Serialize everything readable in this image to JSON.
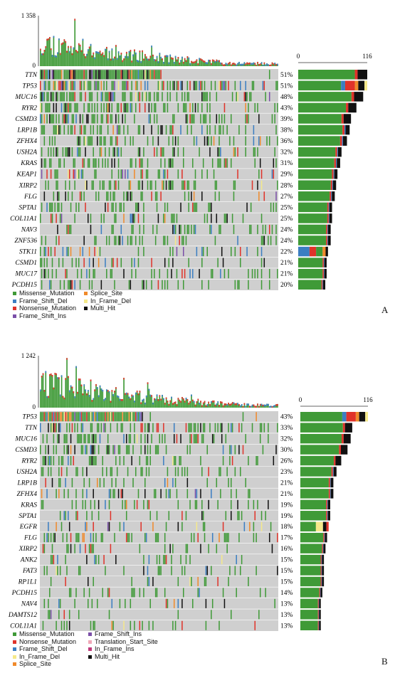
{
  "colors": {
    "Missense_Mutation": "#3f9a37",
    "Frame_Shift_Del": "#3b7ec2",
    "Nonsense_Mutation": "#e0332a",
    "Frame_Shift_Ins": "#7b4fa8",
    "Splice_Site": "#f08a2b",
    "In_Frame_Del": "#f5e98a",
    "Multi_Hit": "#111111",
    "Translation_Start_Site": "#f0a8b8",
    "In_Frame_Ins": "#c0397a",
    "empty": "#cfcfcf"
  },
  "chart_data": [
    {
      "type": "oncoplot",
      "panel_label": "A",
      "tmb_ylim": [
        0,
        1358
      ],
      "tmb_tick_labels": [
        "1 358",
        "0"
      ],
      "bar_axis_ticks": [
        "0",
        "116"
      ],
      "bar_xlim": [
        0,
        116
      ],
      "genes": [
        "TTN",
        "TP53",
        "MUC16",
        "RYR2",
        "CSMD3",
        "LRP1B",
        "ZFHX4",
        "USH2A",
        "KRAS",
        "KEAP1",
        "XIRP2",
        "FLG",
        "SPTA1",
        "COL11A1",
        "NAV3",
        "ZNF536",
        "STK11",
        "CSMD1",
        "MUC17",
        "PCDH15"
      ],
      "percentages": [
        "51%",
        "51%",
        "48%",
        "43%",
        "39%",
        "38%",
        "36%",
        "32%",
        "31%",
        "29%",
        "28%",
        "27%",
        "25%",
        "25%",
        "24%",
        "24%",
        "22%",
        "21%",
        "21%",
        "20%"
      ],
      "frequency_percent": [
        51,
        51,
        48,
        43,
        39,
        38,
        36,
        32,
        31,
        29,
        28,
        27,
        25,
        25,
        24,
        24,
        22,
        21,
        21,
        20
      ],
      "legend": [
        "Missense_Mutation",
        "Splice_Site",
        "Frame_Shift_Del",
        "In_Frame_Del",
        "Nonsense_Mutation",
        "Multi_Hit",
        "Frame_Shift_Ins"
      ]
    },
    {
      "type": "oncoplot",
      "panel_label": "B",
      "tmb_ylim": [
        0,
        1242
      ],
      "tmb_tick_labels": [
        "1 242",
        "0"
      ],
      "bar_axis_ticks": [
        "0",
        "116"
      ],
      "bar_xlim": [
        0,
        116
      ],
      "genes": [
        "TP53",
        "TTN",
        "MUC16",
        "CSMD3",
        "RYR2",
        "USH2A",
        "LRP1B",
        "ZFHX4",
        "KRAS",
        "SPTA1",
        "EGFR",
        "FLG",
        "XIRP2",
        "ANK2",
        "FAT3",
        "RP1L1",
        "PCDH15",
        "NAV4",
        "DAMTS12",
        "COL11A1"
      ],
      "percentages": [
        "43%",
        "33%",
        "32%",
        "30%",
        "26%",
        "23%",
        "21%",
        "21%",
        "19%",
        "19%",
        "18%",
        "17%",
        "16%",
        "15%",
        "15%",
        "15%",
        "14%",
        "13%",
        "13%",
        "13%"
      ],
      "frequency_percent": [
        43,
        33,
        32,
        30,
        26,
        23,
        21,
        21,
        19,
        19,
        18,
        17,
        16,
        15,
        15,
        15,
        14,
        13,
        13,
        13
      ],
      "legend": [
        "Missense_Mutation",
        "Frame_Shift_Ins",
        "Nonsense_Mutation",
        "Translation_Start_Site",
        "Frame_Shift_Del",
        "In_Frame_Ins",
        "In_Frame_Del",
        "Multi_Hit",
        "Splice_Site"
      ]
    }
  ]
}
